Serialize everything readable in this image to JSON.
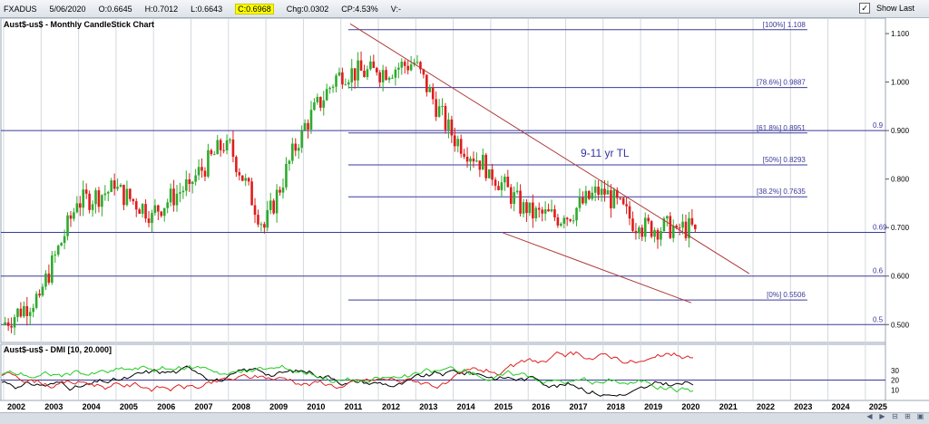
{
  "header": {
    "symbol": "FXADUS",
    "date": "5/06/2020",
    "open": "O:0.6645",
    "high": "H:0.7012",
    "low": "L:0.6643",
    "close": "C:0.6968",
    "change": "Chg:0.0302",
    "change_pct": "CP:4.53%",
    "volume": "V:-",
    "show_last_label": "Show Last",
    "show_last_checked": true
  },
  "chart_data": [
    {
      "type": "candlestick",
      "title": "Aust$-us$ - Monthly CandleStick Chart",
      "x_axis_labels": [
        "2002",
        "2003",
        "2004",
        "2005",
        "2006",
        "2007",
        "2008",
        "2009",
        "2010",
        "2011",
        "2012",
        "2013",
        "2014",
        "2015",
        "2016",
        "2017",
        "2018",
        "2019",
        "2020",
        "2021",
        "2022",
        "2023",
        "2024",
        "2025"
      ],
      "y_ticks": [
        "1.100",
        "1.000",
        "0.900",
        "0.800",
        "0.700",
        "0.600",
        "0.500"
      ],
      "ylim": [
        0.465,
        1.13
      ],
      "up_color": "#2eaa2e",
      "down_color": "#e01c1c",
      "yearly_close": [
        {
          "year": "2002",
          "close": 0.56
        },
        {
          "year": "2003",
          "close": 0.75
        },
        {
          "year": "2004",
          "close": 0.78
        },
        {
          "year": "2005",
          "close": 0.73
        },
        {
          "year": "2006",
          "close": 0.79
        },
        {
          "year": "2007",
          "close": 0.88
        },
        {
          "year": "2008",
          "close": 0.7
        },
        {
          "year": "2009",
          "close": 0.9
        },
        {
          "year": "2010",
          "close": 1.02
        },
        {
          "year": "2011",
          "close": 1.02
        },
        {
          "year": "2012",
          "close": 1.04
        },
        {
          "year": "2013",
          "close": 0.89
        },
        {
          "year": "2014",
          "close": 0.82
        },
        {
          "year": "2015",
          "close": 0.73
        },
        {
          "year": "2016",
          "close": 0.72
        },
        {
          "year": "2017",
          "close": 0.78
        },
        {
          "year": "2018",
          "close": 0.7
        },
        {
          "year": "2019",
          "close": 0.7
        },
        {
          "year": "2020",
          "close": 0.6968
        }
      ],
      "fibonacci_levels": [
        {
          "label": "[100%] 1.108",
          "value": 1.108
        },
        {
          "label": "[78.6%] 0.9887",
          "value": 0.9887
        },
        {
          "label": "[61.8%] 0.8951",
          "value": 0.8951
        },
        {
          "label": "[50%] 0.8293",
          "value": 0.8293
        },
        {
          "label": "[38.2%] 0.7635",
          "value": 0.7635
        },
        {
          "label": "[0%] 0.5506",
          "value": 0.5506
        }
      ],
      "horizontal_levels": [
        {
          "label": "0.9",
          "value": 0.9
        },
        {
          "label": "0.69",
          "value": 0.69
        },
        {
          "label": "0.6",
          "value": 0.6
        },
        {
          "label": "0.5",
          "value": 0.5
        }
      ],
      "trendlines": [
        {
          "label": "9-11 yr TL",
          "from": {
            "year": 2011.25,
            "value": 1.12
          },
          "to": {
            "year": 2021.9,
            "value": 0.605
          }
        },
        {
          "label": "",
          "from": {
            "year": 2015.3,
            "value": 0.69
          },
          "to": {
            "year": 2020.35,
            "value": 0.545
          }
        }
      ],
      "trendline_label": "9-11 yr TL"
    },
    {
      "type": "line",
      "title": "Aust$-us$ - DMI [10, 20.000]",
      "y_ticks": [
        "30",
        "20",
        "10"
      ],
      "reference_level": 20,
      "series": [
        {
          "color": "#000000"
        },
        {
          "color": "#dd2222"
        },
        {
          "color": "#22cc22"
        }
      ]
    }
  ],
  "nav_icons": [
    "zoom-out-icon",
    "zoom-in-icon",
    "scroll-left-icon",
    "scroll-right-icon",
    "fit-icon"
  ]
}
